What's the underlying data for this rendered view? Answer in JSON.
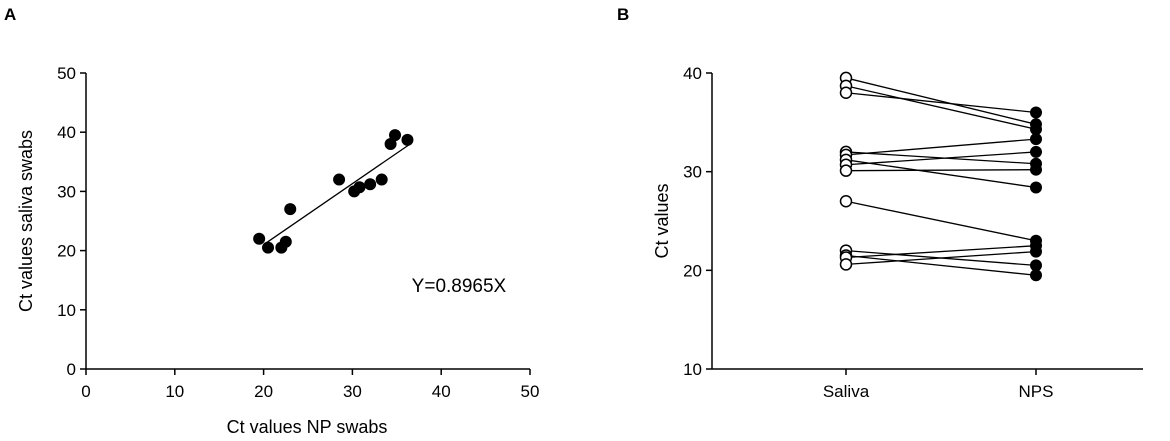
{
  "chart_data": [
    {
      "panel": "A",
      "type": "scatter",
      "title": "",
      "xlabel": "Ct values NP swabs",
      "ylabel": "Ct values saliva swabs",
      "xlim": [
        0,
        50
      ],
      "ylim": [
        0,
        50
      ],
      "xticks": [
        "0",
        "10",
        "20",
        "30",
        "40",
        "50"
      ],
      "yticks": [
        "0",
        "10",
        "20",
        "30",
        "40",
        "50"
      ],
      "points": [
        {
          "x": 19.5,
          "y": 22.0
        },
        {
          "x": 20.5,
          "y": 20.5
        },
        {
          "x": 22.0,
          "y": 20.5
        },
        {
          "x": 22.5,
          "y": 21.5
        },
        {
          "x": 23.0,
          "y": 27.0
        },
        {
          "x": 28.5,
          "y": 32.0
        },
        {
          "x": 30.2,
          "y": 30.0
        },
        {
          "x": 30.8,
          "y": 30.7
        },
        {
          "x": 32.0,
          "y": 31.2
        },
        {
          "x": 33.3,
          "y": 32.0
        },
        {
          "x": 34.3,
          "y": 38.0
        },
        {
          "x": 34.8,
          "y": 39.5
        },
        {
          "x": 36.2,
          "y": 38.7
        }
      ],
      "fit_line": {
        "x": [
          20.0,
          36.3
        ],
        "y": [
          21.0,
          37.8
        ]
      },
      "annotation": "Y=0.8965X",
      "annotation_pos": {
        "x": 42,
        "y": 13
      },
      "marker": "filled-circle",
      "grid": false
    },
    {
      "panel": "B",
      "type": "line",
      "title": "",
      "xlabel": "",
      "ylabel": "Ct values",
      "categories": [
        "Saliva",
        "NPS"
      ],
      "ylim": [
        10,
        40
      ],
      "yticks": [
        "10",
        "20",
        "30",
        "40"
      ],
      "pairs": [
        {
          "saliva": 39.5,
          "nps": 34.8
        },
        {
          "saliva": 38.7,
          "nps": 34.3
        },
        {
          "saliva": 38.0,
          "nps": 36.0
        },
        {
          "saliva": 32.0,
          "nps": 30.8
        },
        {
          "saliva": 31.7,
          "nps": 33.3
        },
        {
          "saliva": 31.2,
          "nps": 28.4
        },
        {
          "saliva": 30.7,
          "nps": 32.0
        },
        {
          "saliva": 30.1,
          "nps": 30.2
        },
        {
          "saliva": 27.0,
          "nps": 23.0
        },
        {
          "saliva": 22.0,
          "nps": 20.5
        },
        {
          "saliva": 21.5,
          "nps": 19.5
        },
        {
          "saliva": 21.3,
          "nps": 22.5
        },
        {
          "saliva": 20.6,
          "nps": 21.9
        }
      ],
      "saliva_marker": "open-circle",
      "nps_marker": "filled-circle",
      "grid": false
    }
  ]
}
